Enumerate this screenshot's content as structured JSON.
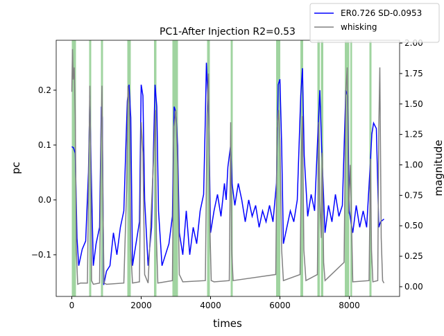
{
  "chart_data": {
    "type": "line",
    "title": "PC1-After Injection R2=0.53",
    "x_label": "times",
    "y_label": "pc",
    "y2_label": "magnitude",
    "xlim": [
      -450,
      9450
    ],
    "xticks": [
      0,
      2000,
      4000,
      6000,
      8000
    ],
    "ylim": [
      -0.176,
      0.291
    ],
    "yticks": [
      {
        "value": -0.1,
        "label": "−0.1"
      },
      {
        "value": 0,
        "label": "0.0"
      },
      0.1,
      0.2
    ],
    "y2lim": [
      -0.08,
      2.023
    ],
    "y2ticks": [
      {
        "value": 0,
        "label": "0.00"
      },
      0.25,
      {
        "value": 0.5,
        "label": "0.50"
      },
      0.75,
      {
        "value": 1,
        "label": "1.00"
      },
      1.25,
      {
        "value": 1.5,
        "label": "1.50"
      },
      1.75,
      {
        "value": 2,
        "label": "2.00"
      }
    ],
    "spans": [
      [
        0,
        120
      ],
      [
        500,
        560
      ],
      [
        840,
        900
      ],
      [
        1600,
        1700
      ],
      [
        2370,
        2440
      ],
      [
        2900,
        3060
      ],
      [
        3900,
        3980
      ],
      [
        4580,
        4640
      ],
      [
        5890,
        6010
      ],
      [
        6590,
        6670
      ],
      [
        7080,
        7150
      ],
      [
        7180,
        7250
      ],
      [
        7870,
        8000
      ],
      [
        8030,
        8080
      ],
      [
        8580,
        8640
      ]
    ],
    "span_color": "#2ca02c",
    "legend": "upper right outside",
    "series": [
      {
        "name": "ER0.726 SD-0.0953",
        "color": "#0000ff",
        "axis": "y",
        "x": [
          0,
          50,
          100,
          150,
          200,
          300,
          400,
          480,
          520,
          560,
          620,
          700,
          800,
          850,
          880,
          920,
          1000,
          1100,
          1200,
          1300,
          1400,
          1500,
          1600,
          1650,
          1700,
          1750,
          1850,
          1950,
          2000,
          2050,
          2100,
          2200,
          2300,
          2400,
          2450,
          2500,
          2600,
          2700,
          2800,
          2900,
          2950,
          3000,
          3050,
          3100,
          3200,
          3300,
          3400,
          3500,
          3600,
          3700,
          3800,
          3850,
          3880,
          3950,
          4000,
          4100,
          4200,
          4300,
          4400,
          4450,
          4500,
          4580,
          4620,
          4700,
          4800,
          4900,
          5000,
          5100,
          5200,
          5300,
          5400,
          5500,
          5600,
          5700,
          5800,
          5900,
          5950,
          6000,
          6050,
          6100,
          6200,
          6300,
          6400,
          6500,
          6600,
          6650,
          6700,
          6800,
          6900,
          7000,
          7100,
          7150,
          7200,
          7300,
          7400,
          7500,
          7600,
          7700,
          7800,
          7900,
          7950,
          8000,
          8100,
          8200,
          8300,
          8400,
          8500,
          8600,
          8650,
          8700,
          8780,
          8850,
          8900,
          9000
        ],
        "values": [
          0.097,
          0.095,
          0.085,
          -0.07,
          -0.12,
          -0.09,
          -0.075,
          0.05,
          0.19,
          0.05,
          -0.12,
          -0.08,
          -0.05,
          0.17,
          0.15,
          -0.155,
          -0.13,
          -0.12,
          -0.06,
          -0.1,
          -0.05,
          -0.02,
          0.18,
          0.21,
          0.15,
          -0.12,
          -0.08,
          -0.04,
          0.21,
          0.19,
          0.0,
          -0.12,
          -0.05,
          0.21,
          0.17,
          -0.02,
          -0.12,
          -0.1,
          -0.08,
          -0.03,
          0.17,
          0.16,
          0.1,
          -0.06,
          -0.1,
          -0.02,
          -0.1,
          -0.05,
          -0.08,
          -0.02,
          0.01,
          0.15,
          0.25,
          0.15,
          -0.06,
          -0.02,
          0.01,
          -0.03,
          0.03,
          0.0,
          0.06,
          0.1,
          0.03,
          -0.01,
          0.03,
          0.0,
          -0.04,
          0.0,
          -0.03,
          -0.01,
          -0.05,
          -0.02,
          -0.04,
          -0.01,
          -0.04,
          0.03,
          0.21,
          0.22,
          0.1,
          -0.08,
          -0.05,
          -0.02,
          -0.04,
          0.0,
          0.19,
          0.24,
          0.08,
          -0.03,
          0.01,
          -0.02,
          0.13,
          0.2,
          0.1,
          -0.06,
          -0.01,
          -0.04,
          0.01,
          -0.03,
          -0.01,
          0.2,
          0.19,
          -0.02,
          -0.06,
          -0.01,
          -0.05,
          -0.02,
          -0.05,
          0.06,
          0.12,
          0.14,
          0.13,
          -0.05,
          -0.04,
          -0.035
        ]
      },
      {
        "name": "whisking",
        "color": "#808080",
        "axis": "y2",
        "x": [
          0,
          20,
          40,
          70,
          100,
          130,
          170,
          250,
          450,
          490,
          520,
          540,
          570,
          620,
          800,
          840,
          870,
          900,
          930,
          1000,
          1500,
          1580,
          1620,
          1660,
          1700,
          1750,
          1950,
          2000,
          2050,
          2100,
          2200,
          2380,
          2410,
          2440,
          2480,
          2900,
          2940,
          3000,
          3050,
          3100,
          3200,
          3850,
          3900,
          3940,
          3980,
          4020,
          4100,
          4540,
          4580,
          4610,
          4650,
          5880,
          5920,
          5960,
          6000,
          6050,
          6100,
          6580,
          6620,
          6650,
          6690,
          6750,
          7080,
          7120,
          7150,
          7190,
          7220,
          7260,
          7300,
          7850,
          7900,
          7940,
          7980,
          8030,
          8100,
          8570,
          8610,
          8640,
          8680,
          8820,
          8850,
          8880,
          8920,
          8960,
          9000
        ],
        "values": [
          1.6,
          1.95,
          1.7,
          1.8,
          1.4,
          0.3,
          0.02,
          0.03,
          0.03,
          1.0,
          1.65,
          1.2,
          0.05,
          0.02,
          0.03,
          1.2,
          1.65,
          0.6,
          0.03,
          0.02,
          0.03,
          0.8,
          1.65,
          1.5,
          0.3,
          0.03,
          0.04,
          1.35,
          1.1,
          0.1,
          0.03,
          1.2,
          1.45,
          0.4,
          0.03,
          0.05,
          1.3,
          1.45,
          1.0,
          0.1,
          0.04,
          0.05,
          1.4,
          1.75,
          0.5,
          0.05,
          0.04,
          0.05,
          1.35,
          0.3,
          0.05,
          0.1,
          1.3,
          1.45,
          1.2,
          0.3,
          0.05,
          0.1,
          1.1,
          1.4,
          0.3,
          0.05,
          0.1,
          1.35,
          0.7,
          0.4,
          1.1,
          0.2,
          0.05,
          0.2,
          1.6,
          1.8,
          0.6,
          1.0,
          0.04,
          0.05,
          1.05,
          0.3,
          0.04,
          0.05,
          1.3,
          1.8,
          0.4,
          0.05,
          0.03
        ]
      }
    ]
  }
}
